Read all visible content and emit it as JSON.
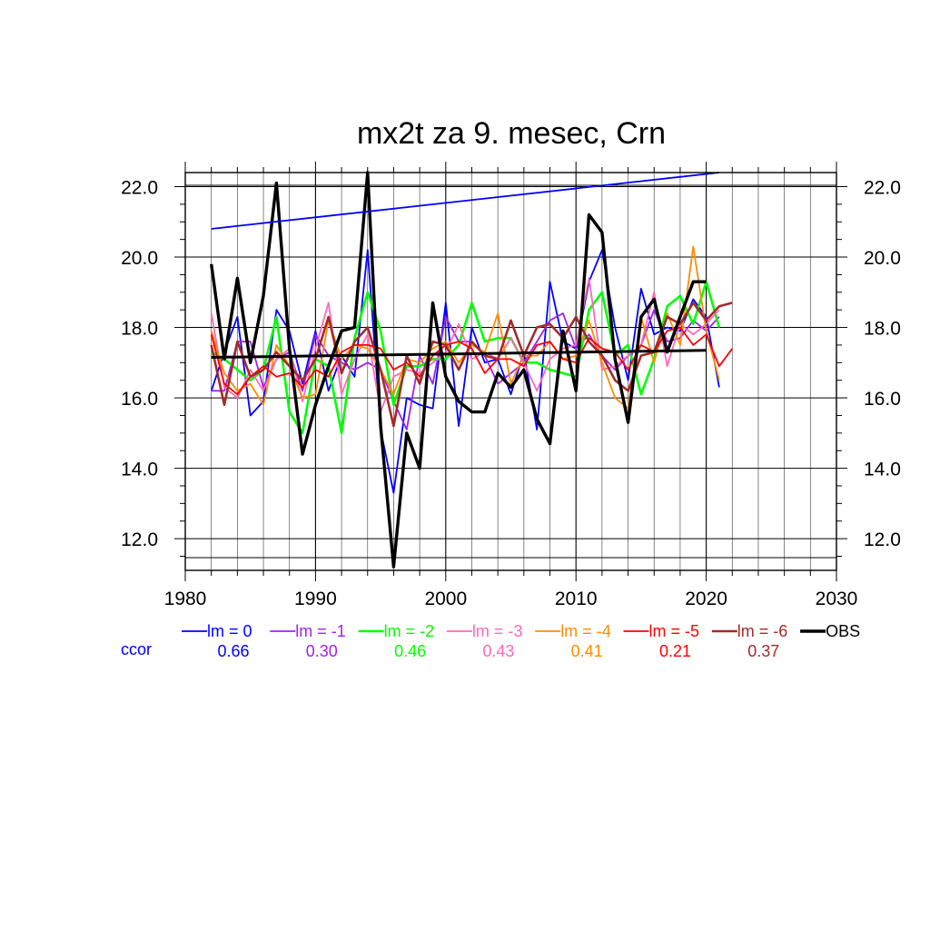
{
  "chart_data": {
    "type": "line",
    "title": "mx2t za 9. mesec, Crn",
    "xlim": [
      1980,
      2030
    ],
    "ylim": [
      11.1,
      22.4
    ],
    "x_ticks": [
      1980,
      1990,
      2000,
      2010,
      2020,
      2030
    ],
    "x_tick_labels": [
      "1980",
      "1990",
      "2000",
      "2010",
      "2020",
      "2030"
    ],
    "y_ticks": [
      12,
      14,
      16,
      18,
      20,
      22
    ],
    "y_tick_labels": [
      "12.0",
      "14.0",
      "16.0",
      "18.0",
      "20.0",
      "22.0"
    ],
    "grid": true,
    "legend_position": "bottom",
    "ccor_label": "ccor",
    "ccor_label_color": "#0000ff",
    "series": [
      {
        "name": "lm = 0",
        "color": "#0000ff",
        "width": 1.8,
        "ccor": "0.66",
        "x": [
          1982,
          1983,
          1984,
          1985,
          1986,
          1987,
          1988,
          1989,
          1990,
          1991,
          1992,
          1993,
          1994,
          1995,
          1996,
          1997,
          1998,
          1999,
          2000,
          2001,
          2002,
          2003,
          2004,
          2005,
          2006,
          2007,
          2008,
          2009,
          2010,
          2011,
          2012,
          2013,
          2014,
          2015,
          2016,
          2017,
          2018,
          2019,
          2020,
          2021
        ],
        "y": [
          16.2,
          17.3,
          18.3,
          15.5,
          15.9,
          18.5,
          17.9,
          16.4,
          17.9,
          16.2,
          17.2,
          16.6,
          20.2,
          15.1,
          13.3,
          16.0,
          15.8,
          15.7,
          18.7,
          15.2,
          18.0,
          17.0,
          17.1,
          16.1,
          17.3,
          15.1,
          19.3,
          17.6,
          17.4,
          19.3,
          20.2,
          18.0,
          16.5,
          19.1,
          17.8,
          18.0,
          17.9,
          18.8,
          18.3,
          16.3
        ]
      },
      {
        "name": "lm = -1",
        "color": "#a020f0",
        "width": 1.8,
        "ccor": "0.30",
        "x": [
          1982,
          1983,
          1984,
          1985,
          1986,
          1987,
          1988,
          1989,
          1990,
          1991,
          1992,
          1993,
          1994,
          1995,
          1996,
          1997,
          1998,
          1999,
          2000,
          2001,
          2002,
          2003,
          2004,
          2005,
          2006,
          2007,
          2008,
          2009,
          2010,
          2011,
          2012,
          2013,
          2014,
          2015,
          2016,
          2017,
          2018,
          2019,
          2020,
          2021
        ],
        "y": [
          16.2,
          16.2,
          17.6,
          17.6,
          16.3,
          17.1,
          17.3,
          16.2,
          17.8,
          17.2,
          17.0,
          16.8,
          17.0,
          16.8,
          15.9,
          15.1,
          17.2,
          16.4,
          18.3,
          17.6,
          17.6,
          17.2,
          16.4,
          16.7,
          17.0,
          17.6,
          18.2,
          18.4,
          17.4,
          17.8,
          17.2,
          16.8,
          17.2,
          17.5,
          18.5,
          17.6,
          17.7,
          18.2,
          17.9,
          18.3
        ]
      },
      {
        "name": "lm = -2",
        "color": "#00ff00",
        "width": 2.6,
        "ccor": "0.46",
        "x": [
          1982,
          1983,
          1984,
          1985,
          1986,
          1987,
          1988,
          1989,
          1990,
          1991,
          1992,
          1993,
          1994,
          1995,
          1996,
          1997,
          1998,
          1999,
          2000,
          2001,
          2002,
          2003,
          2004,
          2005,
          2006,
          2007,
          2008,
          2009,
          2010,
          2011,
          2012,
          2013,
          2014,
          2015,
          2016,
          2017,
          2018,
          2019,
          2020,
          2021
        ],
        "y": [
          17.3,
          17.1,
          16.8,
          16.5,
          16.8,
          18.3,
          15.6,
          15.0,
          17.1,
          16.9,
          15.0,
          17.7,
          19.0,
          17.9,
          15.8,
          16.9,
          16.9,
          17.1,
          17.1,
          17.5,
          18.7,
          17.6,
          17.7,
          17.7,
          17.0,
          17.0,
          16.8,
          16.7,
          16.6,
          18.5,
          19.0,
          17.2,
          17.5,
          16.1,
          17.1,
          18.6,
          18.9,
          18.1,
          19.3,
          18.0
        ]
      },
      {
        "name": "lm = -3",
        "color": "#ff69b4",
        "width": 1.8,
        "ccor": "0.43",
        "x": [
          1982,
          1983,
          1984,
          1985,
          1986,
          1987,
          1988,
          1989,
          1990,
          1991,
          1992,
          1993,
          1994,
          1995,
          1996,
          1997,
          1998,
          1999,
          2000,
          2001,
          2002,
          2003,
          2004,
          2005,
          2006,
          2007,
          2008,
          2009,
          2010,
          2011,
          2012,
          2013,
          2014,
          2015,
          2016,
          2017,
          2018,
          2019,
          2020,
          2021
        ],
        "y": [
          18.4,
          16.3,
          16.0,
          16.8,
          16.2,
          17.1,
          17.4,
          15.9,
          17.4,
          18.7,
          16.1,
          17.1,
          17.8,
          15.6,
          16.6,
          16.8,
          16.7,
          17.0,
          17.3,
          18.1,
          17.1,
          17.3,
          17.1,
          17.7,
          17.0,
          16.2,
          17.1,
          17.4,
          17.5,
          19.4,
          16.8,
          16.9,
          17.2,
          17.5,
          19.0,
          16.9,
          18.1,
          17.8,
          18.1,
          18.5
        ]
      },
      {
        "name": "lm = -4",
        "color": "#ff8c00",
        "width": 1.8,
        "ccor": "0.41",
        "x": [
          1982,
          1983,
          1984,
          1985,
          1986,
          1987,
          1988,
          1989,
          1990,
          1991,
          1992,
          1993,
          1994,
          1995,
          1996,
          1997,
          1998,
          1999,
          2000,
          2001,
          2002,
          2003,
          2004,
          2005,
          2006,
          2007,
          2008,
          2009,
          2010,
          2011,
          2012,
          2013,
          2014,
          2015,
          2016,
          2017,
          2018,
          2019,
          2020,
          2021
        ],
        "y": [
          17.9,
          16.7,
          16.2,
          16.4,
          15.8,
          17.5,
          16.9,
          16.0,
          16.1,
          18.2,
          17.1,
          17.5,
          17.4,
          16.8,
          16.1,
          17.1,
          17.0,
          17.4,
          17.6,
          17.0,
          17.5,
          17.3,
          18.4,
          16.4,
          17.2,
          17.2,
          17.6,
          17.1,
          17.2,
          18.2,
          17.0,
          16.0,
          15.7,
          18.3,
          17.0,
          18.4,
          17.5,
          20.3,
          17.9,
          16.5
        ]
      },
      {
        "name": "lm = -5",
        "color": "#ff0000",
        "width": 1.8,
        "ccor": "0.21",
        "x": [
          1982,
          1983,
          1984,
          1985,
          1986,
          1987,
          1988,
          1989,
          1990,
          1991,
          1992,
          1993,
          1994,
          1995,
          1996,
          1997,
          1998,
          1999,
          2000,
          2001,
          2002,
          2003,
          2004,
          2005,
          2006,
          2007,
          2008,
          2009,
          2010,
          2011,
          2012,
          2013,
          2014,
          2015,
          2016,
          2017,
          2018,
          2019,
          2020,
          2021,
          2022
        ],
        "y": [
          17.8,
          16.4,
          16.1,
          16.6,
          16.9,
          16.6,
          16.7,
          16.3,
          16.8,
          16.6,
          17.3,
          17.5,
          17.5,
          17.4,
          16.8,
          17.0,
          16.6,
          17.2,
          17.5,
          17.6,
          17.4,
          16.7,
          17.1,
          17.1,
          16.9,
          17.5,
          17.6,
          17.1,
          17.0,
          17.7,
          17.4,
          17.3,
          16.8,
          17.5,
          17.3,
          17.9,
          18.0,
          17.5,
          17.8,
          16.9,
          17.4
        ]
      },
      {
        "name": "lm = -6",
        "color": "#a52a2a",
        "width": 2.6,
        "ccor": "0.37",
        "x": [
          1982,
          1983,
          1984,
          1985,
          1986,
          1987,
          1988,
          1989,
          1990,
          1991,
          1992,
          1993,
          1994,
          1995,
          1996,
          1997,
          1998,
          1999,
          2000,
          2001,
          2002,
          2003,
          2004,
          2005,
          2006,
          2007,
          2008,
          2009,
          2010,
          2011,
          2012,
          2013,
          2014,
          2015,
          2016,
          2017,
          2018,
          2019,
          2020,
          2021,
          2022
        ],
        "y": [
          17.5,
          15.8,
          17.6,
          16.6,
          16.8,
          17.3,
          16.9,
          16.5,
          17.1,
          18.3,
          16.7,
          17.6,
          18.0,
          16.8,
          15.2,
          17.2,
          16.4,
          17.6,
          17.5,
          16.8,
          17.6,
          17.2,
          17.1,
          18.2,
          17.2,
          18.0,
          18.1,
          17.7,
          18.3,
          17.6,
          17.2,
          16.5,
          16.2,
          17.2,
          17.3,
          18.3,
          18.1,
          18.7,
          18.2,
          18.6,
          18.7
        ]
      },
      {
        "name": "OBS",
        "color": "#000000",
        "width": 3.4,
        "ccor": "",
        "x": [
          1982,
          1983,
          1984,
          1985,
          1986,
          1987,
          1988,
          1989,
          1990,
          1991,
          1992,
          1993,
          1994,
          1995,
          1996,
          1997,
          1998,
          1999,
          2000,
          2001,
          2002,
          2003,
          2004,
          2005,
          2006,
          2007,
          2008,
          2009,
          2010,
          2011,
          2012,
          2013,
          2014,
          2015,
          2016,
          2017,
          2018,
          2019,
          2020
        ],
        "y": [
          19.8,
          17.1,
          19.4,
          17.0,
          18.9,
          22.1,
          17.4,
          14.4,
          15.8,
          16.9,
          17.9,
          18.0,
          22.4,
          15.2,
          11.2,
          15.0,
          14.0,
          18.7,
          16.6,
          15.9,
          15.6,
          15.6,
          16.7,
          16.3,
          16.8,
          15.4,
          14.7,
          17.9,
          16.2,
          21.2,
          20.7,
          17.1,
          15.3,
          18.3,
          18.8,
          17.3,
          18.3,
          19.3,
          19.3
        ]
      }
    ],
    "trend_lines": [
      {
        "series": "lm = 0",
        "color": "#0000ff",
        "width": 1.8,
        "x": [
          1982,
          2021
        ],
        "y": [
          20.8,
          22.4
        ]
      },
      {
        "series": "OBS",
        "color": "#000000",
        "width": 3.0,
        "x": [
          1982,
          2020
        ],
        "y": [
          17.15,
          17.35
        ]
      }
    ]
  }
}
